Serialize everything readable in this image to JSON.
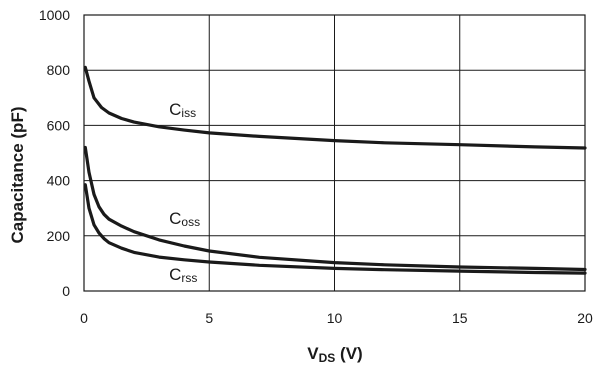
{
  "chart_data": {
    "type": "line",
    "title": "",
    "xlabel": {
      "main": "V",
      "sub": "DS",
      "unit": " (V)"
    },
    "ylabel": "Capacitance (pF)",
    "xlim": [
      0,
      20
    ],
    "ylim": [
      0,
      1000
    ],
    "x_ticks": [
      0,
      5,
      10,
      15,
      20
    ],
    "y_ticks": [
      0,
      200,
      400,
      600,
      800,
      1000
    ],
    "x_tick_labels": [
      "0",
      "5",
      "10",
      "15",
      "20"
    ],
    "y_tick_labels": [
      "0",
      "200",
      "400",
      "600",
      "800",
      "1000"
    ],
    "grid": true,
    "legend": "none",
    "series": [
      {
        "name": "Ciss",
        "label_main": "C",
        "label_sub": "iss",
        "label_anchor": {
          "x": 3.0,
          "y": 660
        },
        "x": [
          0.05,
          0.2,
          0.4,
          0.7,
          1.0,
          1.5,
          2,
          3,
          4,
          5,
          7,
          10,
          12,
          15,
          18,
          20
        ],
        "y": [
          810,
          760,
          700,
          665,
          645,
          625,
          612,
          595,
          583,
          573,
          560,
          545,
          537,
          530,
          522,
          518
        ]
      },
      {
        "name": "Coss",
        "label_main": "C",
        "label_sub": "oss",
        "label_anchor": {
          "x": 3.0,
          "y": 265
        },
        "x": [
          0.05,
          0.2,
          0.4,
          0.6,
          0.8,
          1.0,
          1.5,
          2,
          3,
          4,
          5,
          7,
          10,
          12,
          15,
          18,
          20
        ],
        "y": [
          520,
          430,
          350,
          305,
          278,
          260,
          235,
          215,
          185,
          163,
          145,
          122,
          103,
          95,
          87,
          82,
          78
        ]
      },
      {
        "name": "Crss",
        "label_main": "C",
        "label_sub": "rss",
        "label_anchor": {
          "x": 3.0,
          "y": 62
        },
        "x": [
          0.05,
          0.2,
          0.4,
          0.6,
          0.8,
          1.0,
          1.5,
          2,
          3,
          4,
          5,
          7,
          10,
          12,
          15,
          18,
          20
        ],
        "y": [
          385,
          300,
          240,
          210,
          190,
          175,
          155,
          140,
          123,
          113,
          105,
          93,
          82,
          77,
          72,
          67,
          65
        ]
      }
    ]
  }
}
